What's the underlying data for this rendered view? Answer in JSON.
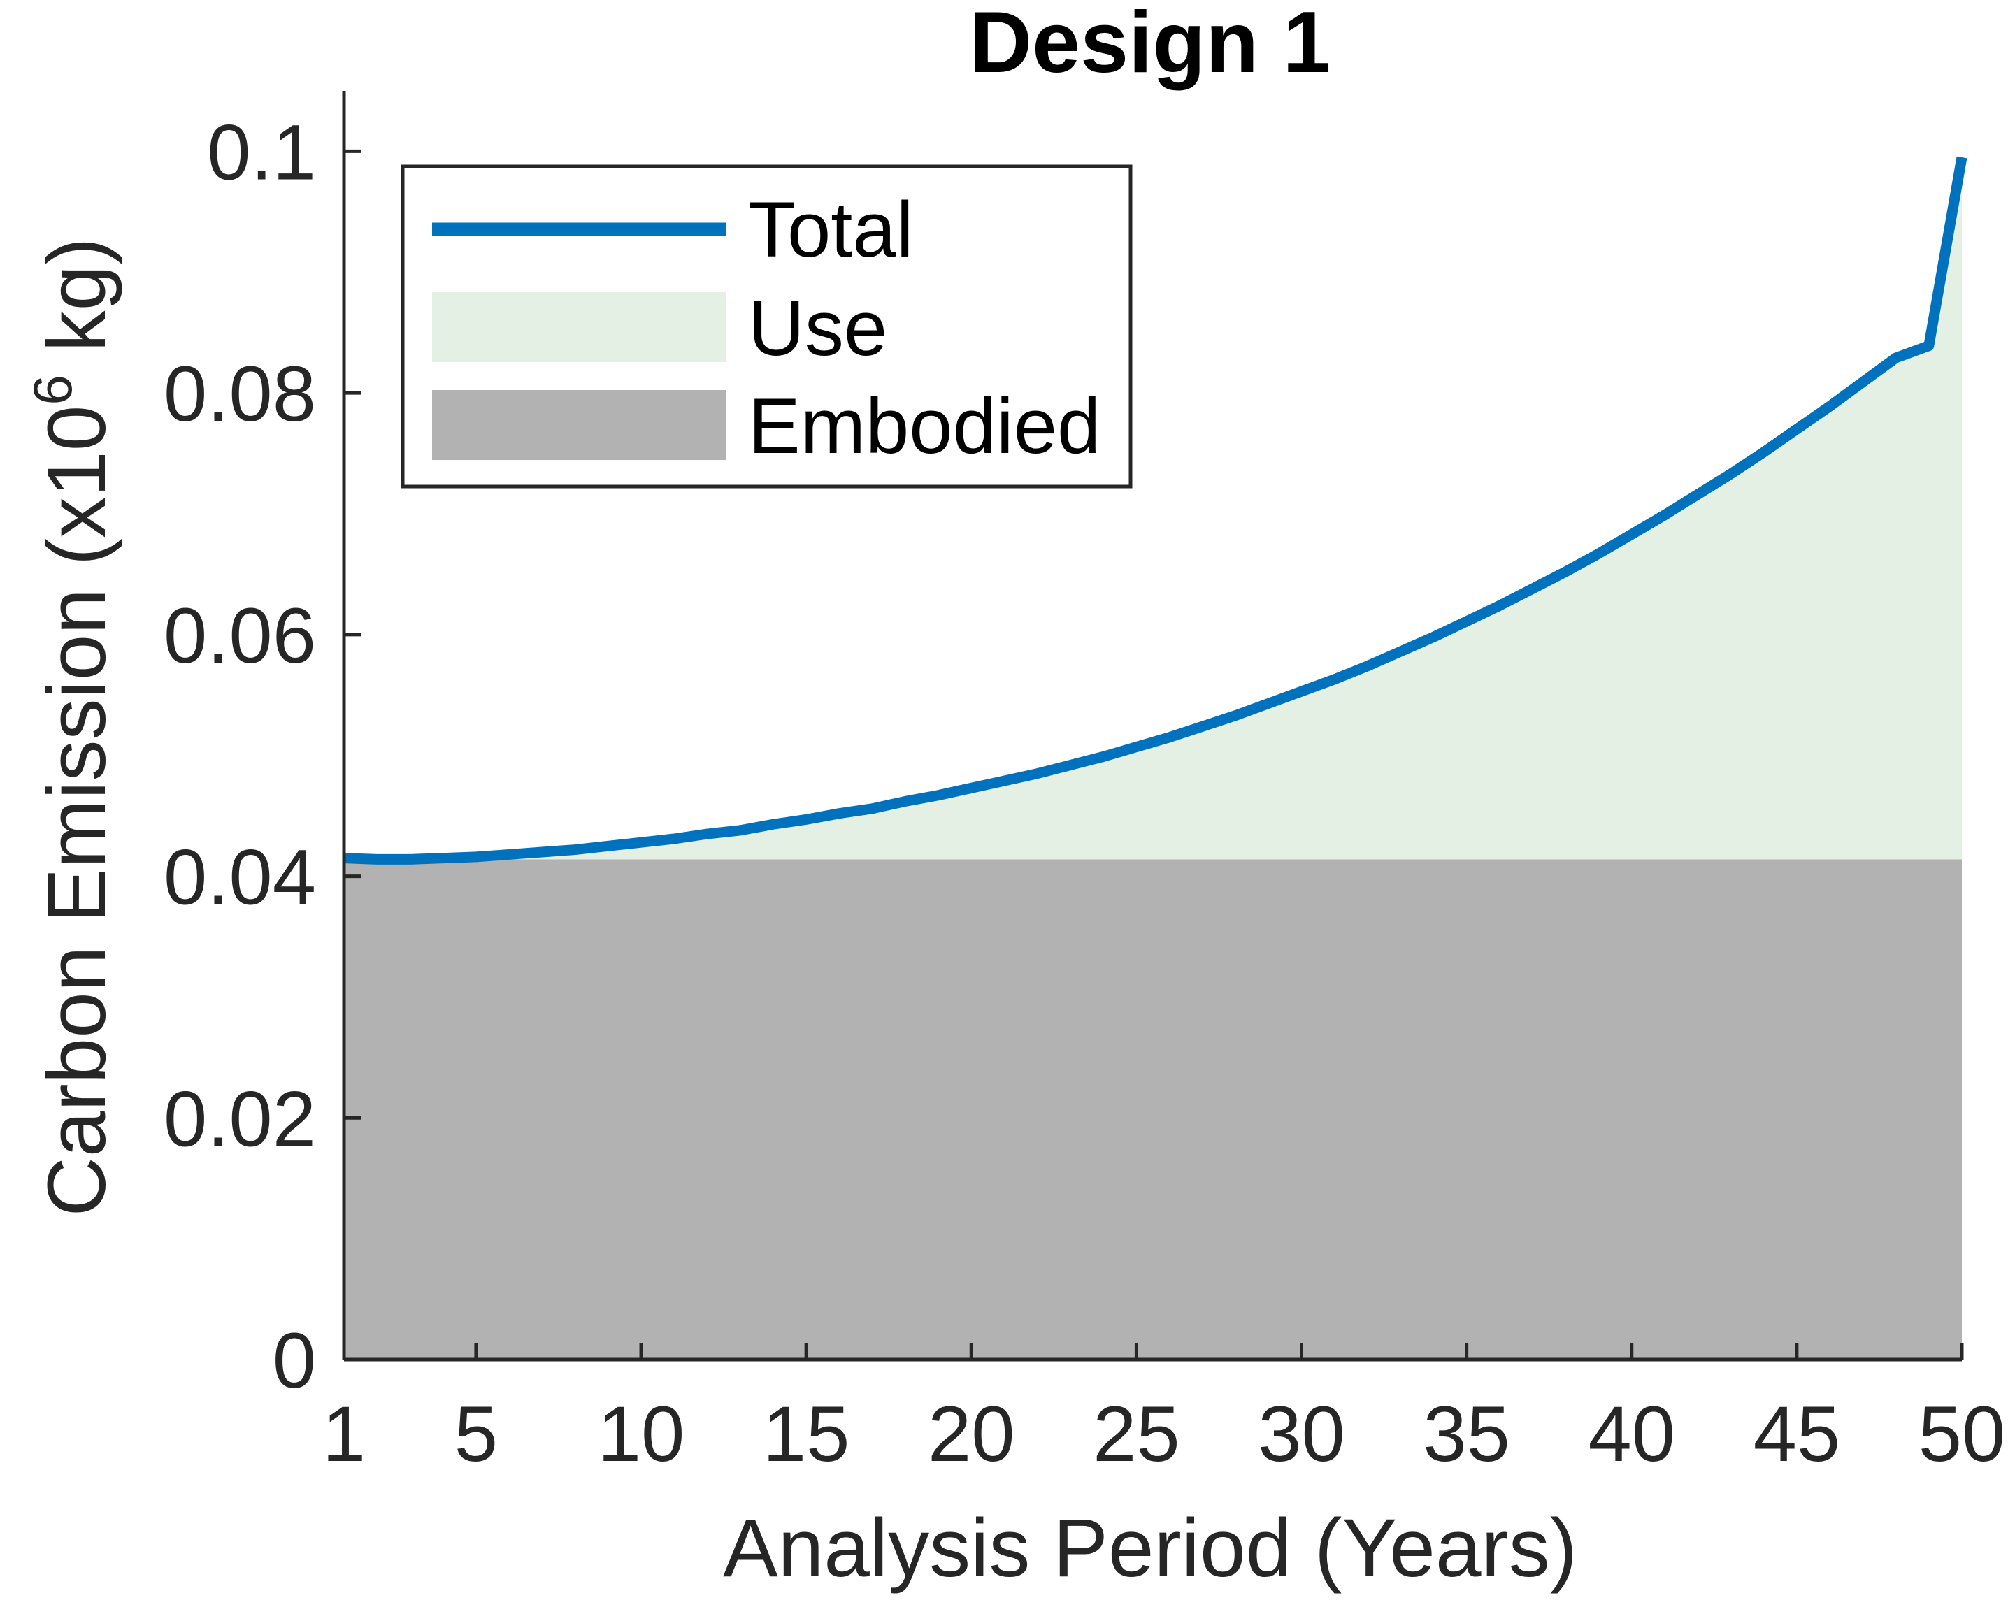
{
  "chart_data": {
    "type": "area",
    "title": "Design 1",
    "xlabel": "Analysis Period (Years)",
    "ylabel": "Carbon Emission (x10",
    "ylabel_exponent": "6",
    "ylabel_suffix": " kg)",
    "xlim": [
      1,
      50
    ],
    "ylim": [
      0,
      0.105
    ],
    "x_ticks": [
      1,
      5,
      10,
      15,
      20,
      25,
      30,
      35,
      40,
      45,
      50
    ],
    "y_ticks": [
      0,
      0.02,
      0.04,
      0.06,
      0.08,
      0.1
    ],
    "y_tick_labels": [
      "0",
      "0.02",
      "0.04",
      "0.06",
      "0.08",
      "0.1"
    ],
    "grid": false,
    "legend_position": "top-left",
    "x": [
      1,
      2,
      3,
      4,
      5,
      6,
      7,
      8,
      9,
      10,
      11,
      12,
      13,
      14,
      15,
      16,
      17,
      18,
      19,
      20,
      21,
      22,
      23,
      24,
      25,
      26,
      27,
      28,
      29,
      30,
      31,
      32,
      33,
      34,
      35,
      36,
      37,
      38,
      39,
      40,
      41,
      42,
      43,
      44,
      45,
      46,
      47,
      48,
      49,
      50
    ],
    "series": [
      {
        "name": "Total",
        "style": "line",
        "color": "#0072BD",
        "values": [
          0.0415,
          0.0414,
          0.0414,
          0.0415,
          0.0416,
          0.0418,
          0.042,
          0.0422,
          0.0425,
          0.0428,
          0.0431,
          0.0435,
          0.0438,
          0.0443,
          0.0447,
          0.0452,
          0.0456,
          0.0462,
          0.0467,
          0.0473,
          0.0479,
          0.0485,
          0.0492,
          0.0499,
          0.0507,
          0.0515,
          0.0524,
          0.0533,
          0.0543,
          0.0553,
          0.0563,
          0.0574,
          0.0586,
          0.0598,
          0.0611,
          0.0624,
          0.0638,
          0.0652,
          0.0667,
          0.0683,
          0.0699,
          0.0716,
          0.0733,
          0.0751,
          0.077,
          0.0789,
          0.0809,
          0.0829,
          0.0839,
          0.0995
        ]
      },
      {
        "name": "Use",
        "style": "area",
        "color": "#E3F0E3",
        "values": [
          0.0,
          0.0,
          0.0,
          0.0001,
          0.0002,
          0.0004,
          0.0006,
          0.0008,
          0.0011,
          0.0014,
          0.0017,
          0.0021,
          0.0024,
          0.0029,
          0.0033,
          0.0038,
          0.0042,
          0.0048,
          0.0053,
          0.0059,
          0.0065,
          0.0071,
          0.0078,
          0.0085,
          0.0093,
          0.0101,
          0.011,
          0.0119,
          0.0129,
          0.0139,
          0.0149,
          0.016,
          0.0172,
          0.0184,
          0.0197,
          0.021,
          0.0224,
          0.0238,
          0.0253,
          0.0269,
          0.0285,
          0.0302,
          0.0319,
          0.0337,
          0.0356,
          0.0375,
          0.0395,
          0.0415,
          0.0425,
          0.0581
        ]
      },
      {
        "name": "Embodied",
        "style": "area",
        "color": "#B2B2B2",
        "values": [
          0.0414,
          0.0414,
          0.0414,
          0.0414,
          0.0414,
          0.0414,
          0.0414,
          0.0414,
          0.0414,
          0.0414,
          0.0414,
          0.0414,
          0.0414,
          0.0414,
          0.0414,
          0.0414,
          0.0414,
          0.0414,
          0.0414,
          0.0414,
          0.0414,
          0.0414,
          0.0414,
          0.0414,
          0.0414,
          0.0414,
          0.0414,
          0.0414,
          0.0414,
          0.0414,
          0.0414,
          0.0414,
          0.0414,
          0.0414,
          0.0414,
          0.0414,
          0.0414,
          0.0414,
          0.0414,
          0.0414,
          0.0414,
          0.0414,
          0.0414,
          0.0414,
          0.0414,
          0.0414,
          0.0414,
          0.0414,
          0.0414,
          0.0414
        ]
      }
    ]
  }
}
